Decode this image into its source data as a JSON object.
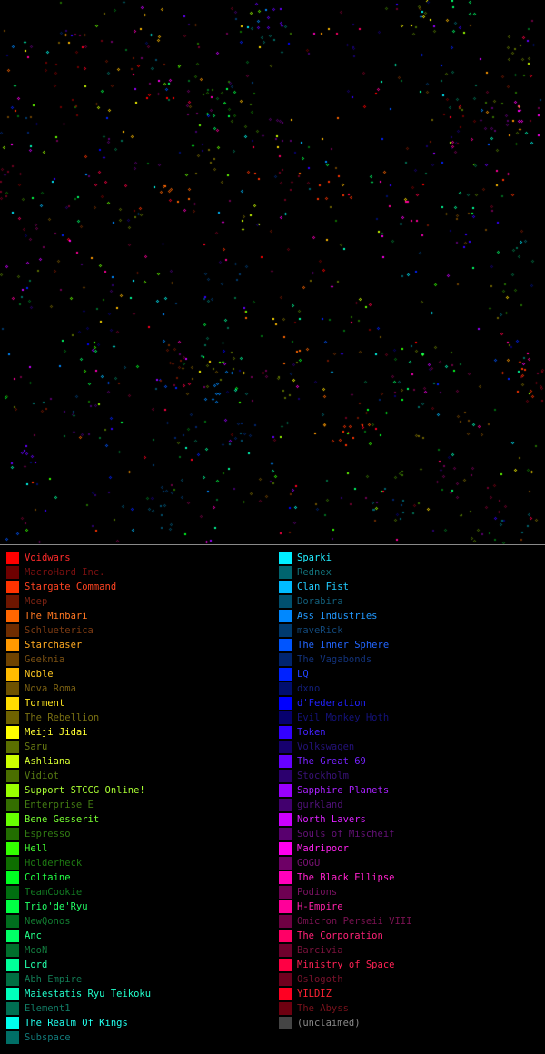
{
  "map": {
    "background": "#000000",
    "separator_color": "#8a8a8a",
    "seed": 7
  },
  "legend": {
    "left": [
      {
        "name": "Voidwars",
        "color": "#ff0000",
        "text": "#ff2b2b"
      },
      {
        "name": "MacroHard Inc.",
        "color": "#6e0000",
        "text": "#7a1010"
      },
      {
        "name": "Stargate Command",
        "color": "#ff3300",
        "text": "#ff4422"
      },
      {
        "name": "Moep",
        "color": "#6e1600",
        "text": "#7a2212"
      },
      {
        "name": "The Minbari",
        "color": "#ff6600",
        "text": "#ff7722"
      },
      {
        "name": "Schlueterica",
        "color": "#6e2c00",
        "text": "#7a3a12"
      },
      {
        "name": "Starchaser",
        "color": "#ff9900",
        "text": "#ffaa22"
      },
      {
        "name": "Geeknia",
        "color": "#6e4200",
        "text": "#7a5012"
      },
      {
        "name": "Noble",
        "color": "#ffbb00",
        "text": "#ffc822"
      },
      {
        "name": "Nova Roma",
        "color": "#6e5200",
        "text": "#7a6012"
      },
      {
        "name": "Torment",
        "color": "#ffdd00",
        "text": "#ffe622"
      },
      {
        "name": "The Rebellion",
        "color": "#6e6200",
        "text": "#7a7012"
      },
      {
        "name": "Meiji Jidai",
        "color": "#ffff00",
        "text": "#ffff33"
      },
      {
        "name": "Saru",
        "color": "#5a6e00",
        "text": "#687a12"
      },
      {
        "name": "Ashliana",
        "color": "#ccff00",
        "text": "#d8ff33"
      },
      {
        "name": "Vidiot",
        "color": "#4a6e00",
        "text": "#587a12"
      },
      {
        "name": "Support STCCG Online!",
        "color": "#99ff00",
        "text": "#aaff33"
      },
      {
        "name": "Enterprise E",
        "color": "#346e00",
        "text": "#427a12"
      },
      {
        "name": "Bene Gesserit",
        "color": "#66ff00",
        "text": "#77ff33"
      },
      {
        "name": "Espresso",
        "color": "#226e00",
        "text": "#307a12"
      },
      {
        "name": "Hell",
        "color": "#33ff00",
        "text": "#44ff33"
      },
      {
        "name": "Holderheck",
        "color": "#0e6e00",
        "text": "#1e7a12"
      },
      {
        "name": "Coltaine",
        "color": "#00ff22",
        "text": "#22ff44"
      },
      {
        "name": "TeamCookie",
        "color": "#006e10",
        "text": "#127a22"
      },
      {
        "name": "Trio'de'Ryu",
        "color": "#00ff44",
        "text": "#22ff66"
      },
      {
        "name": "NewQonos",
        "color": "#006e1e",
        "text": "#127a30"
      },
      {
        "name": "Anc",
        "color": "#00ff66",
        "text": "#22ff88"
      },
      {
        "name": "MooN",
        "color": "#006e2c",
        "text": "#127a3e"
      },
      {
        "name": "Lord",
        "color": "#00ff99",
        "text": "#22ffaa"
      },
      {
        "name": "Abh Empire",
        "color": "#006e42",
        "text": "#127a54"
      },
      {
        "name": "Maiestatis Ryu Teikoku",
        "color": "#00ffbb",
        "text": "#22ffcc"
      },
      {
        "name": "Element1",
        "color": "#006e52",
        "text": "#127a64"
      },
      {
        "name": "The Realm Of Kings",
        "color": "#00ffee",
        "text": "#22ffee"
      },
      {
        "name": "Subspace",
        "color": "#006e66",
        "text": "#127a7a"
      }
    ],
    "right": [
      {
        "name": "Sparki",
        "color": "#00eeff",
        "text": "#22eeff"
      },
      {
        "name": "Rednex",
        "color": "#00646e",
        "text": "#12727a"
      },
      {
        "name": "Clan Fist",
        "color": "#00bbff",
        "text": "#22ccff"
      },
      {
        "name": "Dorabira",
        "color": "#00506e",
        "text": "#125e7a"
      },
      {
        "name": "Ass Industries",
        "color": "#0088ff",
        "text": "#2299ff"
      },
      {
        "name": "maveRick",
        "color": "#003a6e",
        "text": "#12487a"
      },
      {
        "name": "The Inner Sphere",
        "color": "#0055ff",
        "text": "#2266ff"
      },
      {
        "name": "The Vagabonds",
        "color": "#00246e",
        "text": "#12327a"
      },
      {
        "name": "LQ",
        "color": "#0022ff",
        "text": "#2244ff"
      },
      {
        "name": "dxno",
        "color": "#000e6e",
        "text": "#121e7a"
      },
      {
        "name": "d'Federation",
        "color": "#0000ff",
        "text": "#2222ff"
      },
      {
        "name": "Evil Monkey Hoth",
        "color": "#06006e",
        "text": "#14127a"
      },
      {
        "name": "Token",
        "color": "#3300ff",
        "text": "#4422ff"
      },
      {
        "name": "Volkswagen",
        "color": "#16006e",
        "text": "#24127a"
      },
      {
        "name": "The Great 69",
        "color": "#6600ff",
        "text": "#7722ff"
      },
      {
        "name": "Stockholm",
        "color": "#2c006e",
        "text": "#3a127a"
      },
      {
        "name": "Sapphire Planets",
        "color": "#9900ff",
        "text": "#aa22ff"
      },
      {
        "name": "gurkland",
        "color": "#42006e",
        "text": "#50127a"
      },
      {
        "name": "North Lavers",
        "color": "#cc00ff",
        "text": "#dd22ff"
      },
      {
        "name": "Souls of Mischeif",
        "color": "#58006e",
        "text": "#66127a"
      },
      {
        "name": "Madripoor",
        "color": "#ff00ee",
        "text": "#ff22ee"
      },
      {
        "name": "GOGU",
        "color": "#6e0066",
        "text": "#7a1274"
      },
      {
        "name": "The Black Ellipse",
        "color": "#ff00bb",
        "text": "#ff22cc"
      },
      {
        "name": "Podions",
        "color": "#6e0052",
        "text": "#7a1262"
      },
      {
        "name": "H-Empire",
        "color": "#ff0099",
        "text": "#ff22aa"
      },
      {
        "name": "Omicron Perseii VIII",
        "color": "#6e0042",
        "text": "#7a1252"
      },
      {
        "name": "The Corporation",
        "color": "#ff0066",
        "text": "#ff2277"
      },
      {
        "name": "Barcivia",
        "color": "#6e002c",
        "text": "#7a123c"
      },
      {
        "name": "Ministry of Space",
        "color": "#ff0044",
        "text": "#ff2255"
      },
      {
        "name": "Oslogoth",
        "color": "#6e001e",
        "text": "#7a122c"
      },
      {
        "name": "YILDIZ",
        "color": "#ff0022",
        "text": "#ff2233"
      },
      {
        "name": "The Abyss",
        "color": "#6e0010",
        "text": "#7a121c"
      },
      {
        "name": "(unclaimed)",
        "color": "#444444",
        "text": "#888888"
      }
    ]
  }
}
